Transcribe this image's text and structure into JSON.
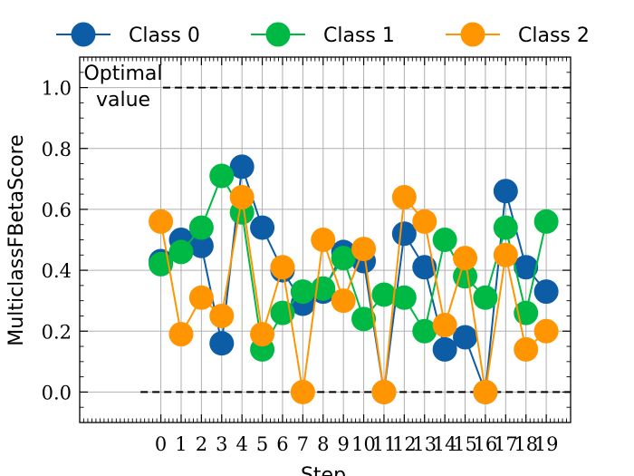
{
  "chart_data": {
    "type": "line",
    "title": "",
    "xlabel": "Step",
    "ylabel": "MulticlassFBetaScore",
    "x": [
      0,
      1,
      2,
      3,
      4,
      5,
      6,
      7,
      8,
      9,
      10,
      11,
      12,
      13,
      14,
      15,
      16,
      17,
      18,
      19
    ],
    "xtick_labels": [
      "0",
      "1",
      "2",
      "3",
      "4",
      "5",
      "6",
      "7",
      "8",
      "9",
      "10",
      "11",
      "12",
      "13",
      "14",
      "15",
      "16",
      "17",
      "18",
      "19"
    ],
    "xlim": [
      -4,
      20.2
    ],
    "ylim": [
      -0.1,
      1.1
    ],
    "yticks": [
      0.0,
      0.2,
      0.4,
      0.6,
      0.8,
      1.0
    ],
    "ytick_labels": [
      "0.0",
      "0.2",
      "0.4",
      "0.6",
      "0.8",
      "1.0"
    ],
    "grid": true,
    "legend_placement": "top, above plot",
    "annotation": {
      "line1": "Optimal",
      "line2": "value",
      "optimal_y": 1.0,
      "baseline_y": 0.0
    },
    "series": [
      {
        "name": "Class 0",
        "color": "#0C5DA5",
        "values": [
          0.43,
          0.5,
          0.48,
          0.16,
          0.74,
          0.54,
          0.4,
          0.29,
          0.33,
          0.46,
          0.43,
          0.0,
          0.52,
          0.41,
          0.14,
          0.18,
          0.0,
          0.66,
          0.41,
          0.33
        ]
      },
      {
        "name": "Class 1",
        "color": "#00B945",
        "values": [
          0.42,
          0.46,
          0.54,
          0.71,
          0.59,
          0.14,
          0.26,
          0.33,
          0.34,
          0.44,
          0.24,
          0.32,
          0.31,
          0.2,
          0.5,
          0.38,
          0.31,
          0.54,
          0.26,
          0.56
        ]
      },
      {
        "name": "Class 2",
        "color": "#FF9500",
        "values": [
          0.56,
          0.19,
          0.31,
          0.25,
          0.64,
          0.19,
          0.41,
          0.0,
          0.5,
          0.3,
          0.47,
          0.0,
          0.64,
          0.56,
          0.22,
          0.44,
          0.0,
          0.45,
          0.14,
          0.2
        ]
      }
    ]
  }
}
